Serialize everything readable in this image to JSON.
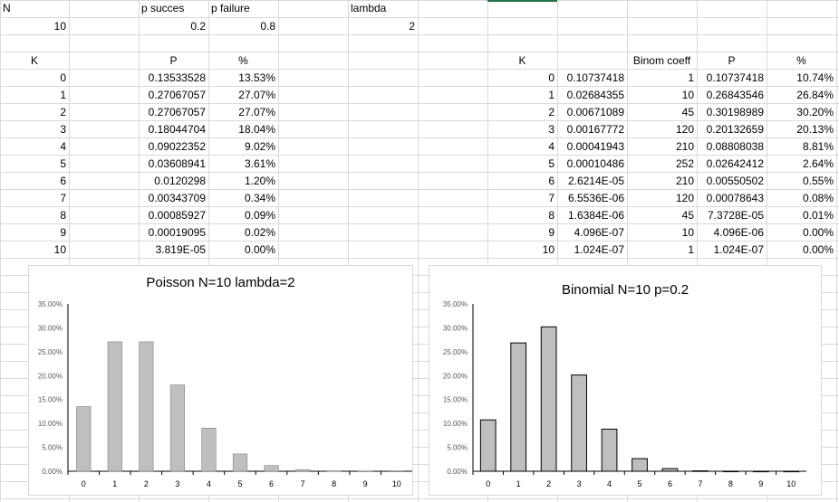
{
  "sheet": {
    "header_row": {
      "N": "N",
      "p_succes": "p succes",
      "p_failure": "p failure",
      "lambda": "lambda"
    },
    "values_row": {
      "N": "10",
      "p_succes": "0.2",
      "p_failure": "0.8",
      "lambda": "2"
    },
    "poisson_headers": {
      "K": "K",
      "P": "P",
      "pct": "%"
    },
    "poisson_rows": [
      {
        "k": "0",
        "p": "0.13533528",
        "pct": "13.53%"
      },
      {
        "k": "1",
        "p": "0.27067057",
        "pct": "27.07%"
      },
      {
        "k": "2",
        "p": "0.27067057",
        "pct": "27.07%"
      },
      {
        "k": "3",
        "p": "0.18044704",
        "pct": "18.04%"
      },
      {
        "k": "4",
        "p": "0.09022352",
        "pct": "9.02%"
      },
      {
        "k": "5",
        "p": "0.03608941",
        "pct": "3.61%"
      },
      {
        "k": "6",
        "p": "0.0120298",
        "pct": "1.20%"
      },
      {
        "k": "7",
        "p": "0.00343709",
        "pct": "0.34%"
      },
      {
        "k": "8",
        "p": "0.00085927",
        "pct": "0.09%"
      },
      {
        "k": "9",
        "p": "0.00019095",
        "pct": "0.02%"
      },
      {
        "k": "10",
        "p": "3.819E-05",
        "pct": "0.00%"
      }
    ],
    "binom_headers": {
      "K": "K",
      "coeff": "Binom coeff",
      "P": "P",
      "pct": "%"
    },
    "binom_rows": [
      {
        "k": "0",
        "pk": "0.10737418",
        "coeff": "1",
        "p": "0.10737418",
        "pct": "10.74%"
      },
      {
        "k": "1",
        "pk": "0.02684355",
        "coeff": "10",
        "p": "0.26843546",
        "pct": "26.84%"
      },
      {
        "k": "2",
        "pk": "0.00671089",
        "coeff": "45",
        "p": "0.30198989",
        "pct": "30.20%"
      },
      {
        "k": "3",
        "pk": "0.00167772",
        "coeff": "120",
        "p": "0.20132659",
        "pct": "20.13%"
      },
      {
        "k": "4",
        "pk": "0.00041943",
        "coeff": "210",
        "p": "0.08808038",
        "pct": "8.81%"
      },
      {
        "k": "5",
        "pk": "0.00010486",
        "coeff": "252",
        "p": "0.02642412",
        "pct": "2.64%"
      },
      {
        "k": "6",
        "pk": "2.6214E-05",
        "coeff": "210",
        "p": "0.00550502",
        "pct": "0.55%"
      },
      {
        "k": "7",
        "pk": "6.5536E-06",
        "coeff": "120",
        "p": "0.00078643",
        "pct": "0.08%"
      },
      {
        "k": "8",
        "pk": "1.6384E-06",
        "coeff": "45",
        "p": "7.3728E-05",
        "pct": "0.01%"
      },
      {
        "k": "9",
        "pk": "4.096E-07",
        "coeff": "10",
        "p": "4.096E-06",
        "pct": "0.00%"
      },
      {
        "k": "10",
        "pk": "1.024E-07",
        "coeff": "1",
        "p": "1.024E-07",
        "pct": "0.00%"
      }
    ]
  },
  "colors": {
    "bar_fill": "#bfbfbf",
    "bar_stroke": "#7f7f7f",
    "binom_stroke": "#000000",
    "gridline": "#d9d9d9",
    "selection": "#217346"
  },
  "chart_data": [
    {
      "type": "bar",
      "title": "Poisson N=10 lambda=2",
      "categories": [
        "0",
        "1",
        "2",
        "3",
        "4",
        "5",
        "6",
        "7",
        "8",
        "9",
        "10"
      ],
      "values": [
        13.53,
        27.07,
        27.07,
        18.04,
        9.02,
        3.61,
        1.2,
        0.34,
        0.09,
        0.02,
        0.0
      ],
      "ylim": [
        0,
        35
      ],
      "yticks": [
        "0.00%",
        "5.00%",
        "10.00%",
        "15.00%",
        "20.00%",
        "25.00%",
        "30.00%",
        "35.00%"
      ],
      "grid": false
    },
    {
      "type": "bar",
      "title": "Binomial N=10 p=0.2",
      "categories": [
        "0",
        "1",
        "2",
        "3",
        "4",
        "5",
        "6",
        "7",
        "8",
        "9",
        "10"
      ],
      "values": [
        10.74,
        26.84,
        30.2,
        20.13,
        8.81,
        2.64,
        0.55,
        0.08,
        0.01,
        0.0,
        0.0
      ],
      "ylim": [
        0,
        35
      ],
      "yticks": [
        "0.00%",
        "5.00%",
        "10.00%",
        "15.00%",
        "20.00%",
        "25.00%",
        "30.00%",
        "35.00%"
      ],
      "grid": false
    }
  ]
}
